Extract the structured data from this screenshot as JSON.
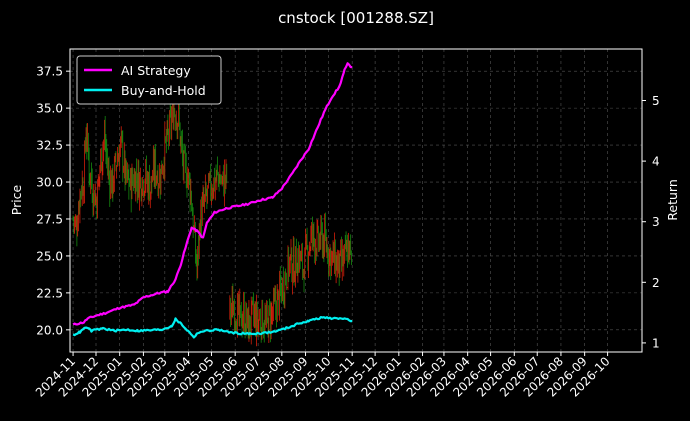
{
  "chart_data": {
    "type": "line",
    "title": "cnstock [001288.SZ]",
    "xlabel": "",
    "ylabel_left": "Price",
    "ylabel_right": "Return",
    "x_ticks": [
      "2024-11",
      "2024-12",
      "2025-01",
      "2025-02",
      "2025-03",
      "2025-04",
      "2025-05",
      "2025-06",
      "2025-07",
      "2025-08",
      "2025-09",
      "2025-10",
      "2025-11",
      "2025-12",
      "2026-01",
      "2026-02",
      "2026-03",
      "2026-04",
      "2026-05",
      "2026-06",
      "2026-07",
      "2026-08",
      "2026-09",
      "2026-10"
    ],
    "x_range": [
      "2024-10-28",
      "2026-11-15"
    ],
    "y_left_ticks": [
      "20.0",
      "22.5",
      "25.0",
      "27.5",
      "30.0",
      "32.5",
      "35.0",
      "37.5"
    ],
    "y_left_range": [
      18.5,
      39.0
    ],
    "y_right_ticks": [
      "1",
      "2",
      "3",
      "4",
      "5"
    ],
    "y_right_range": [
      0.85,
      5.85
    ],
    "grid": true,
    "legend_position": "top-left",
    "colors": {
      "up": "#d21f0b",
      "down": "#168a10",
      "ai": "#ff00ff",
      "bh": "#00f0f0",
      "grid": "#555555"
    },
    "price_series": {
      "name": "Price",
      "points": [
        [
          "2024-11-01",
          27.6
        ],
        [
          "2024-11-05",
          26.8
        ],
        [
          "2024-11-10",
          29.3
        ],
        [
          "2024-11-15",
          30.2
        ],
        [
          "2024-11-18",
          33.6
        ],
        [
          "2024-11-22",
          31.0
        ],
        [
          "2024-11-27",
          29.4
        ],
        [
          "2024-12-02",
          28.8
        ],
        [
          "2024-12-07",
          31.5
        ],
        [
          "2024-12-12",
          33.0
        ],
        [
          "2024-12-17",
          30.6
        ],
        [
          "2024-12-22",
          29.8
        ],
        [
          "2024-12-28",
          31.5
        ],
        [
          "2025-01-03",
          32.5
        ],
        [
          "2025-01-09",
          30.2
        ],
        [
          "2025-01-15",
          29.8
        ],
        [
          "2025-01-21",
          30.4
        ],
        [
          "2025-01-27",
          30.1
        ],
        [
          "2025-02-04",
          30.3
        ],
        [
          "2025-02-10",
          29.6
        ],
        [
          "2025-02-16",
          31.0
        ],
        [
          "2025-02-22",
          30.2
        ],
        [
          "2025-03-01",
          32.2
        ],
        [
          "2025-03-07",
          33.5
        ],
        [
          "2025-03-13",
          35.0
        ],
        [
          "2025-03-19",
          34.2
        ],
        [
          "2025-03-25",
          31.0
        ],
        [
          "2025-03-31",
          30.5
        ],
        [
          "2025-04-04",
          29.4
        ],
        [
          "2025-04-08",
          26.5
        ],
        [
          "2025-04-12",
          24.0
        ],
        [
          "2025-04-16",
          27.5
        ],
        [
          "2025-04-22",
          28.6
        ],
        [
          "2025-04-28",
          29.5
        ],
        [
          "2025-05-04",
          30.0
        ],
        [
          "2025-05-10",
          30.4
        ],
        [
          "2025-05-16",
          29.9
        ],
        [
          "2025-05-22",
          30.5
        ]
      ],
      "points_segment2": [
        [
          "2025-05-25",
          21.3
        ],
        [
          "2025-05-31",
          21.5
        ],
        [
          "2025-06-06",
          20.7
        ],
        [
          "2025-06-12",
          21.0
        ],
        [
          "2025-06-18",
          20.3
        ],
        [
          "2025-06-24",
          20.9
        ],
        [
          "2025-06-30",
          20.5
        ],
        [
          "2025-07-06",
          20.8
        ],
        [
          "2025-07-12",
          20.3
        ],
        [
          "2025-07-18",
          21.0
        ],
        [
          "2025-07-24",
          21.6
        ],
        [
          "2025-07-30",
          22.4
        ],
        [
          "2025-08-05",
          23.5
        ],
        [
          "2025-08-11",
          24.6
        ],
        [
          "2025-08-17",
          24.3
        ],
        [
          "2025-08-23",
          25.0
        ],
        [
          "2025-08-29",
          24.2
        ],
        [
          "2025-09-04",
          25.5
        ],
        [
          "2025-09-10",
          26.4
        ],
        [
          "2025-09-16",
          25.8
        ],
        [
          "2025-09-22",
          26.2
        ],
        [
          "2025-09-28",
          25.7
        ],
        [
          "2025-10-04",
          25.0
        ],
        [
          "2025-10-10",
          24.6
        ],
        [
          "2025-10-16",
          24.2
        ],
        [
          "2025-10-22",
          24.8
        ],
        [
          "2025-10-28",
          25.6
        ],
        [
          "2025-11-01",
          24.0
        ]
      ]
    },
    "series": [
      {
        "name": "AI Strategy",
        "points": [
          [
            "2024-11-01",
            1.3
          ],
          [
            "2024-11-15",
            1.34
          ],
          [
            "2024-11-20",
            1.4
          ],
          [
            "2024-12-01",
            1.45
          ],
          [
            "2024-12-15",
            1.5
          ],
          [
            "2025-01-01",
            1.58
          ],
          [
            "2025-01-20",
            1.63
          ],
          [
            "2025-02-01",
            1.75
          ],
          [
            "2025-02-20",
            1.82
          ],
          [
            "2025-03-05",
            1.85
          ],
          [
            "2025-03-15",
            2.05
          ],
          [
            "2025-03-22",
            2.3
          ],
          [
            "2025-03-31",
            2.7
          ],
          [
            "2025-04-05",
            2.9
          ],
          [
            "2025-04-12",
            2.85
          ],
          [
            "2025-04-20",
            2.73
          ],
          [
            "2025-04-25",
            2.98
          ],
          [
            "2025-05-05",
            3.15
          ],
          [
            "2025-05-20",
            3.22
          ],
          [
            "2025-06-01",
            3.25
          ],
          [
            "2025-06-20",
            3.3
          ],
          [
            "2025-07-01",
            3.35
          ],
          [
            "2025-07-20",
            3.4
          ],
          [
            "2025-08-01",
            3.55
          ],
          [
            "2025-08-15",
            3.8
          ],
          [
            "2025-08-25",
            4.0
          ],
          [
            "2025-09-05",
            4.2
          ],
          [
            "2025-09-15",
            4.5
          ],
          [
            "2025-09-25",
            4.8
          ],
          [
            "2025-10-05",
            5.05
          ],
          [
            "2025-10-15",
            5.22
          ],
          [
            "2025-10-22",
            5.5
          ],
          [
            "2025-10-26",
            5.6
          ],
          [
            "2025-11-01",
            5.55
          ]
        ]
      },
      {
        "name": "Buy-and-Hold",
        "points": [
          [
            "2024-11-01",
            1.13
          ],
          [
            "2024-11-10",
            1.18
          ],
          [
            "2024-11-18",
            1.26
          ],
          [
            "2024-11-25",
            1.2
          ],
          [
            "2024-12-10",
            1.24
          ],
          [
            "2024-12-25",
            1.2
          ],
          [
            "2025-01-10",
            1.22
          ],
          [
            "2025-01-25",
            1.2
          ],
          [
            "2025-02-10",
            1.21
          ],
          [
            "2025-02-25",
            1.22
          ],
          [
            "2025-03-10",
            1.28
          ],
          [
            "2025-03-15",
            1.39
          ],
          [
            "2025-03-22",
            1.32
          ],
          [
            "2025-03-31",
            1.2
          ],
          [
            "2025-04-08",
            1.1
          ],
          [
            "2025-04-15",
            1.18
          ],
          [
            "2025-04-25",
            1.2
          ],
          [
            "2025-05-10",
            1.22
          ],
          [
            "2025-05-22",
            1.18
          ],
          [
            "2025-06-05",
            1.16
          ],
          [
            "2025-06-20",
            1.15
          ],
          [
            "2025-07-05",
            1.16
          ],
          [
            "2025-07-20",
            1.18
          ],
          [
            "2025-08-01",
            1.22
          ],
          [
            "2025-08-15",
            1.28
          ],
          [
            "2025-08-25",
            1.33
          ],
          [
            "2025-09-05",
            1.36
          ],
          [
            "2025-09-15",
            1.4
          ],
          [
            "2025-09-25",
            1.42
          ],
          [
            "2025-10-10",
            1.4
          ],
          [
            "2025-10-20",
            1.41
          ],
          [
            "2025-11-01",
            1.36
          ]
        ]
      }
    ],
    "legend": [
      {
        "label": "AI Strategy",
        "color": "#ff00ff"
      },
      {
        "label": "Buy-and-Hold",
        "color": "#00f0f0"
      }
    ]
  }
}
